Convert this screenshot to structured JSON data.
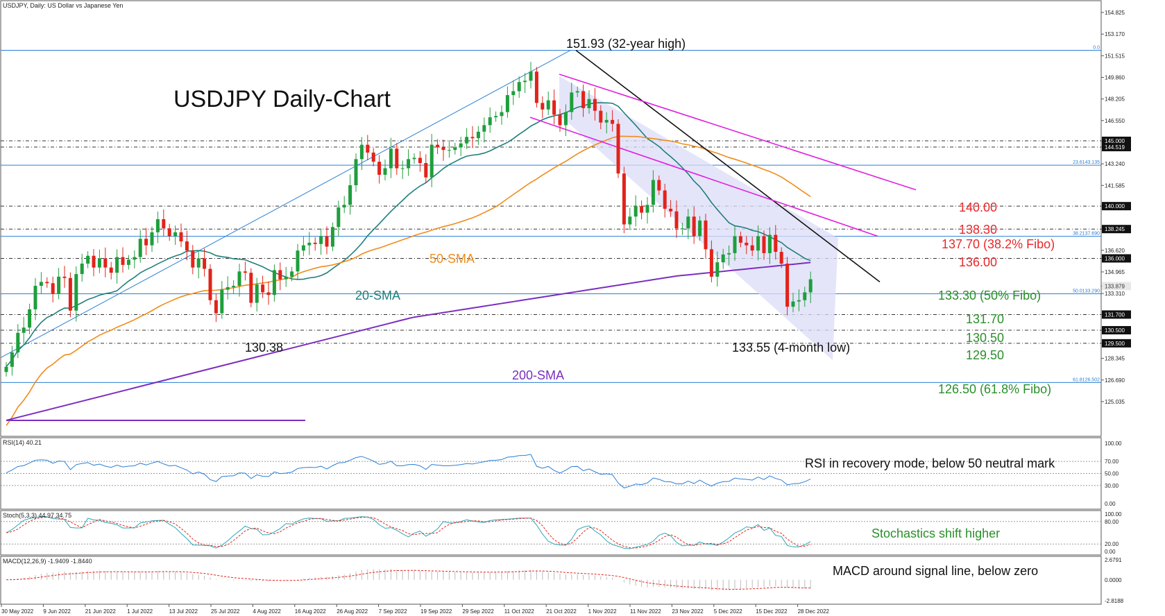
{
  "header": {
    "instrument": "USDJPY, Daily:  US Dollar vs Japanese Yen",
    "rsi_label": "RSI(14) 40.21",
    "stoch_label": "Stoch(5,3,3) 44.97 34.75",
    "macd_label": "MACD(12,26,9) -1.9409 -1.8440"
  },
  "chart_data": {
    "type": "candlestick",
    "title": "USDJPY Daily-Chart",
    "price_axis": [
      "154.825",
      "153.170",
      "151.515",
      "149.860",
      "148.205",
      "146.550",
      "145.000",
      "144.519",
      "143.240",
      "141.585",
      "140.000",
      "138.245",
      "136.620",
      "136.000",
      "134.965",
      "133.879",
      "133.310",
      "131.700",
      "130.500",
      "129.500",
      "128.345",
      "126.690",
      "125.035"
    ],
    "date_axis": [
      "30 May 2022",
      "9 Jun 2022",
      "21 Jun 2022",
      "1 Jul 2022",
      "13 Jul 2022",
      "25 Jul 2022",
      "4 Aug 2022",
      "16 Aug 2022",
      "26 Aug 2022",
      "7 Sep 2022",
      "19 Sep 2022",
      "29 Sep 2022",
      "11 Oct 2022",
      "21 Oct 2022",
      "1 Nov 2022",
      "11 Nov 2022",
      "23 Nov 2022",
      "5 Dec 2022",
      "15 Dec 2022",
      "28 Dec 2022"
    ],
    "closes": [
      127.7,
      128.8,
      130.3,
      130.7,
      132.1,
      133.9,
      134.2,
      134.1,
      133.3,
      134.6,
      134.5,
      132.0,
      134.8,
      135.6,
      136.2,
      135.3,
      136.0,
      135.3,
      134.9,
      136.1,
      135.5,
      135.9,
      136.1,
      137.5,
      137.0,
      138.0,
      139.0,
      138.3,
      137.7,
      138.0,
      137.3,
      136.6,
      135.3,
      136.0,
      135.2,
      132.8,
      131.8,
      133.6,
      133.8,
      133.9,
      135.0,
      134.9,
      132.6,
      134.0,
      133.4,
      133.2,
      135.1,
      134.4,
      134.6,
      135.0,
      136.6,
      137.0,
      137.2,
      137.1,
      137.7,
      136.9,
      138.4,
      139.9,
      140.1,
      141.6,
      143.6,
      144.7,
      144.1,
      143.4,
      142.4,
      142.9,
      144.4,
      142.9,
      142.9,
      143.6,
      143.7,
      143.3,
      142.2,
      144.7,
      144.5,
      144.3,
      144.3,
      144.5,
      144.8,
      145.3,
      145.2,
      145.7,
      146.2,
      146.8,
      146.9,
      147.2,
      148.5,
      148.8,
      149.5,
      149.6,
      150.3,
      147.9,
      147.4,
      148.1,
      147.0,
      146.2,
      147.2,
      148.7,
      148.8,
      147.5,
      148.2,
      147.3,
      146.4,
      146.6,
      146.3,
      142.5,
      138.6,
      139.2,
      140.0,
      139.5,
      140.1,
      142.0,
      141.2,
      139.8,
      139.6,
      138.3,
      138.3,
      139.2,
      137.7,
      138.9,
      136.7,
      134.6,
      135.7,
      136.3,
      136.4,
      137.7,
      137.2,
      137.0,
      136.6,
      137.7,
      136.4,
      137.8,
      136.5,
      135.6,
      132.3,
      132.7,
      132.8,
      133.4,
      134.4
    ],
    "overlays": [
      {
        "name": "20-SMA",
        "color": "#1f7f7a"
      },
      {
        "name": "50-SMA",
        "color": "#f08c1a"
      },
      {
        "name": "200-SMA",
        "color": "#7a2ec0"
      }
    ],
    "annotations": {
      "high": "151.93 (32-year high)",
      "low_left": "130.38",
      "low_right": "133.55 (4-month low)",
      "levels": [
        {
          "label": "140.00",
          "color": "#e8282b"
        },
        {
          "label": "138.30",
          "color": "#e8282b"
        },
        {
          "label": "137.70 (38.2% Fibo)",
          "color": "#e8282b"
        },
        {
          "label": "136.00",
          "color": "#e8282b"
        },
        {
          "label": "133.30 (50% Fibo)",
          "color": "#2a8f2a"
        },
        {
          "label": "131.70",
          "color": "#2a8f2a"
        },
        {
          "label": "130.50",
          "color": "#2a8f2a"
        },
        {
          "label": "129.50",
          "color": "#2a8f2a"
        },
        {
          "label": "126.50 (61.8% Fibo)",
          "color": "#2a8f2a"
        }
      ],
      "fib_tags": [
        "0.0",
        "23.6143.135",
        "38.2137.690",
        "50.0133.290",
        "61.8126.502"
      ],
      "level_tags": [
        "145.000",
        "144.519",
        "140.000",
        "138.245",
        "136.000",
        "133.879",
        "131.700",
        "130.500",
        "129.500"
      ]
    },
    "rsi": {
      "axis": [
        "100.00",
        "70.00",
        "50.00",
        "30.00",
        "0.00"
      ],
      "comment": "RSI in recovery mode, below 50 neutral mark",
      "line_color": "#2a7fd4"
    },
    "stoch": {
      "axis": [
        "100.00",
        "80.00",
        "20.00",
        "0.00"
      ],
      "comment": "Stochastics shift higher",
      "comment_color": "#2a8f2a"
    },
    "macd": {
      "axis": [
        "2.6791",
        "0.0000",
        "-2.8188"
      ],
      "comment": "MACD around signal line, below zero"
    },
    "colors": {
      "up": "#1f9e3c",
      "down": "#e2231a",
      "trend": "#111111",
      "channel": "#e01ee0",
      "fill": "#dcdcf8",
      "fibline": "#2a7fd4"
    }
  }
}
